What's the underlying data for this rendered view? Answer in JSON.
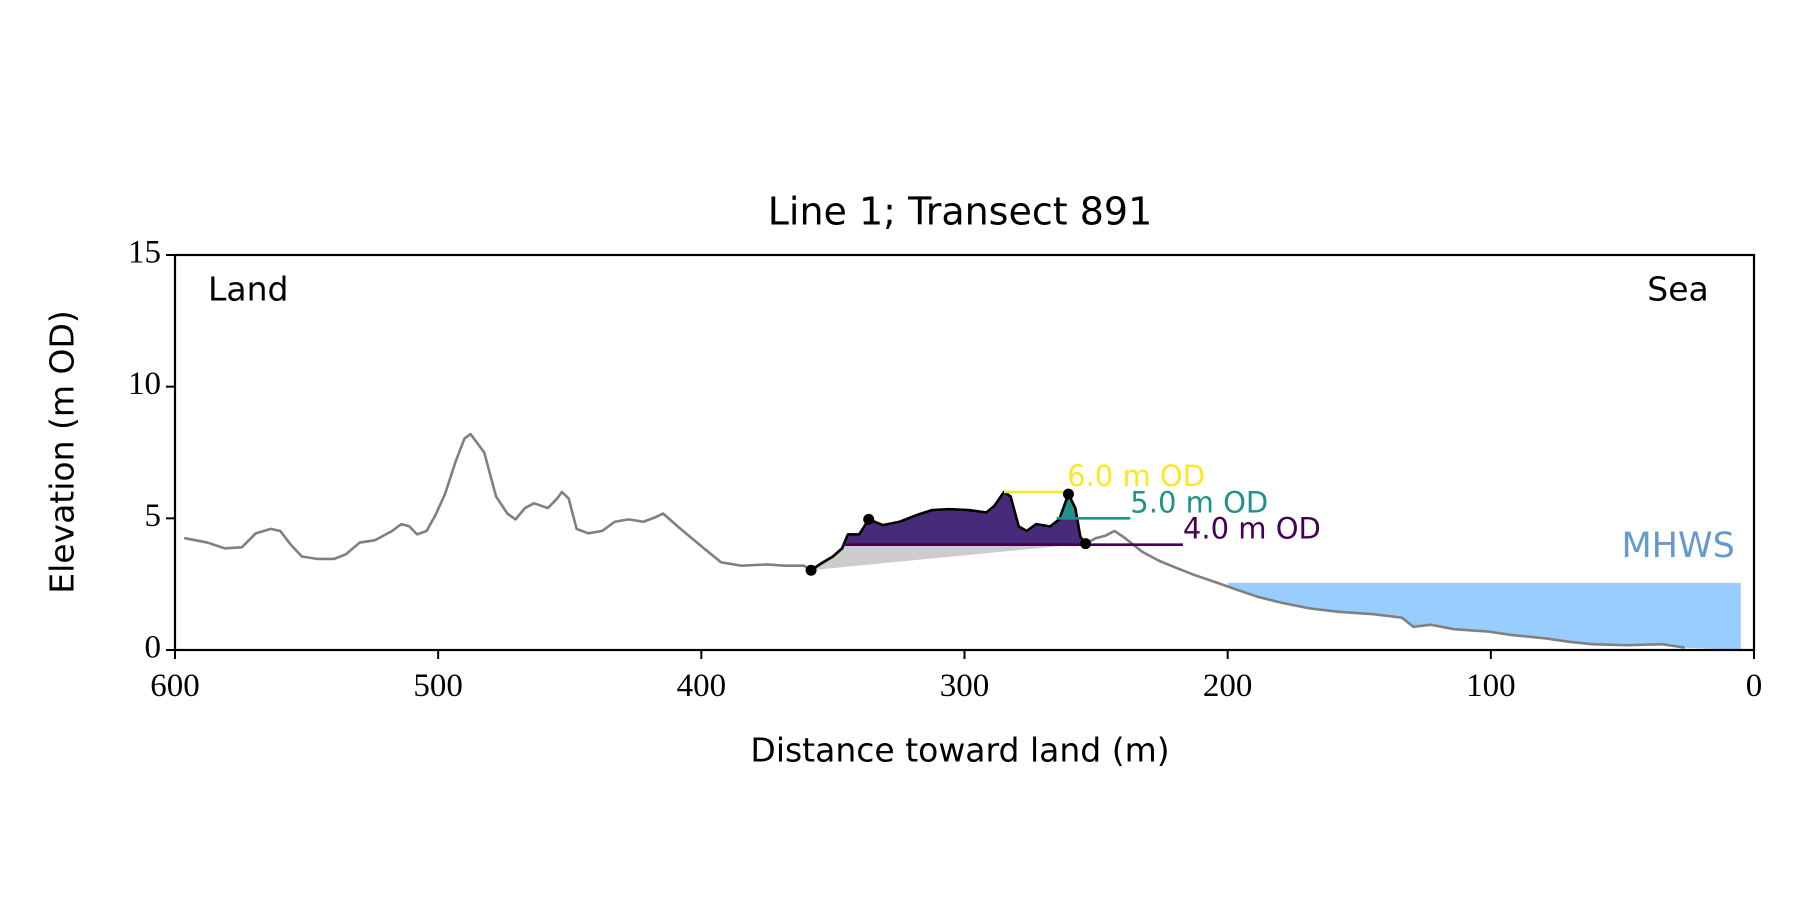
{
  "chart_data": {
    "type": "line",
    "title": "Line 1; Transect 891",
    "xlabel": "Distance toward land (m)",
    "ylabel": "Elevation (m OD)",
    "xlim": [
      600,
      0
    ],
    "ylim": [
      0,
      15
    ],
    "xticks": [
      600,
      500,
      400,
      300,
      200,
      100,
      0
    ],
    "yticks": [
      0,
      5,
      10,
      15
    ],
    "annotations": [
      {
        "text": "Land",
        "corner": "upper-left"
      },
      {
        "text": "Sea",
        "corner": "upper-right"
      }
    ],
    "series": [
      {
        "color": "#808080",
        "x": [
          596.5,
          587.7,
          581,
          574.6,
          569.3,
          563.6,
          560,
          556,
          551.8,
          546,
          539.5,
          535,
          529.8,
          524,
          517.5,
          514,
          511,
          508,
          504.4,
          501,
          497.4,
          493.4,
          490,
          487.7,
          482.5,
          478,
          473.7,
          470.6,
          467,
          463.6,
          458.3,
          454.8,
          453,
          450.4,
          447.4,
          443,
          437.7,
          432.9,
          427.6,
          422,
          417.5,
          414.5,
          407.9,
          399,
          392.5,
          384.6,
          375,
          368.4,
          361,
          358.3,
          354.4,
          350,
          346.5,
          344.3,
          340,
          336.4,
          331,
          324.6,
          318,
          312.3,
          306,
          298.2,
          291.7,
          288.6,
          285,
          282.5,
          279.4,
          276.3,
          272.8,
          267.5,
          264,
          260.5,
          257.9,
          256,
          254,
          250,
          246.5,
          243,
          239,
          232.5,
          225.9,
          219.3,
          212.7,
          206.2,
          197.4,
          188.6,
          179.8,
          168.9,
          157.9,
          144.7,
          133.8,
          129.4,
          122.8,
          114,
          100.9,
          92.1,
          79,
          70.2,
          61.4,
          48.2,
          35,
          26.3
        ],
        "values": [
          4.25,
          4.08,
          3.86,
          3.9,
          4.43,
          4.6,
          4.52,
          4.0,
          3.55,
          3.46,
          3.46,
          3.64,
          4.08,
          4.17,
          4.52,
          4.78,
          4.7,
          4.39,
          4.52,
          5.13,
          5.92,
          7.15,
          8.03,
          8.2,
          7.5,
          5.83,
          5.18,
          4.96,
          5.39,
          5.57,
          5.39,
          5.75,
          6.0,
          5.75,
          4.6,
          4.43,
          4.52,
          4.87,
          4.96,
          4.87,
          5.04,
          5.18,
          4.6,
          3.86,
          3.33,
          3.2,
          3.25,
          3.2,
          3.2,
          3.03,
          3.29,
          3.55,
          3.86,
          4.39,
          4.39,
          4.96,
          4.74,
          4.87,
          5.13,
          5.31,
          5.35,
          5.31,
          5.22,
          5.48,
          6.0,
          5.83,
          4.69,
          4.52,
          4.78,
          4.69,
          4.96,
          5.92,
          5.39,
          4.3,
          4.04,
          4.25,
          4.34,
          4.52,
          4.25,
          3.73,
          3.38,
          3.11,
          2.85,
          2.63,
          2.32,
          2.02,
          1.8,
          1.58,
          1.45,
          1.36,
          1.23,
          0.88,
          0.96,
          0.79,
          0.7,
          0.57,
          0.44,
          0.31,
          0.22,
          0.18,
          0.22,
          0.09
        ]
      },
      {
        "color": "#000000",
        "x": [
          358.3,
          354.4,
          350,
          346.5,
          344.3,
          340,
          336.4,
          331,
          324.6,
          318,
          312.3,
          306,
          298.2,
          291.7,
          288.6,
          285,
          282.5,
          279.4,
          276.3,
          272.8,
          267.5,
          264,
          260.5,
          257.9,
          256,
          254
        ],
        "values": [
          3.03,
          3.29,
          3.55,
          3.86,
          4.39,
          4.39,
          4.96,
          4.74,
          4.87,
          5.13,
          5.31,
          5.35,
          5.31,
          5.22,
          5.48,
          6.0,
          5.83,
          4.69,
          4.52,
          4.78,
          4.69,
          4.96,
          5.92,
          5.39,
          4.3,
          4.04
        ]
      }
    ],
    "base_fill_color": "#cccccc",
    "markers": {
      "color": "#000000",
      "x": [
        358.3,
        336.4,
        260.5,
        254
      ],
      "values": [
        3.03,
        4.96,
        5.92,
        4.04
      ]
    },
    "levels": [
      {
        "label": "4.0 m OD",
        "value": 4.0,
        "x_range": [
          346,
          217
        ],
        "color": "#440154",
        "fill_color": "#472a7a"
      },
      {
        "label": "5.0 m OD",
        "value": 5.0,
        "x_range": [
          265,
          237
        ],
        "color": "#21918c",
        "fill_color": "#21918c"
      },
      {
        "label": "6.0 m OD",
        "value": 6.0,
        "x_range": [
          285,
          261
        ],
        "color": "#fde725",
        "fill_color": "#fde725"
      }
    ],
    "mhws": {
      "label": "MHWS",
      "value": 2.55,
      "x_range": [
        200,
        5
      ],
      "color": "#99ccff",
      "label_color": "#6699cc"
    }
  }
}
